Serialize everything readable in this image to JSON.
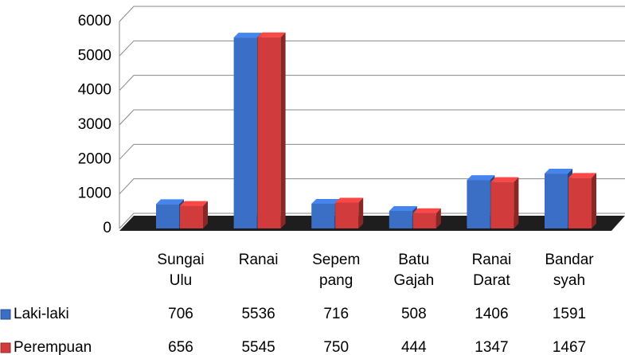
{
  "chart_data": {
    "type": "bar3d",
    "categories": [
      "Sungai Ulu",
      "Ranai",
      "Sepem pang",
      "Batu Gajah",
      "Ranai Darat",
      "Bandar syah"
    ],
    "series": [
      {
        "name": "Laki-laki",
        "color": "#3b6fc6",
        "values": [
          706,
          5536,
          716,
          508,
          1406,
          1591
        ]
      },
      {
        "name": "Perempuan",
        "color": "#d23b3b",
        "values": [
          656,
          5545,
          750,
          444,
          1347,
          1467
        ]
      }
    ],
    "ylim": [
      0,
      6000
    ],
    "yticks": [
      0,
      1000,
      2000,
      3000,
      4000,
      5000,
      6000
    ],
    "grid": true
  }
}
